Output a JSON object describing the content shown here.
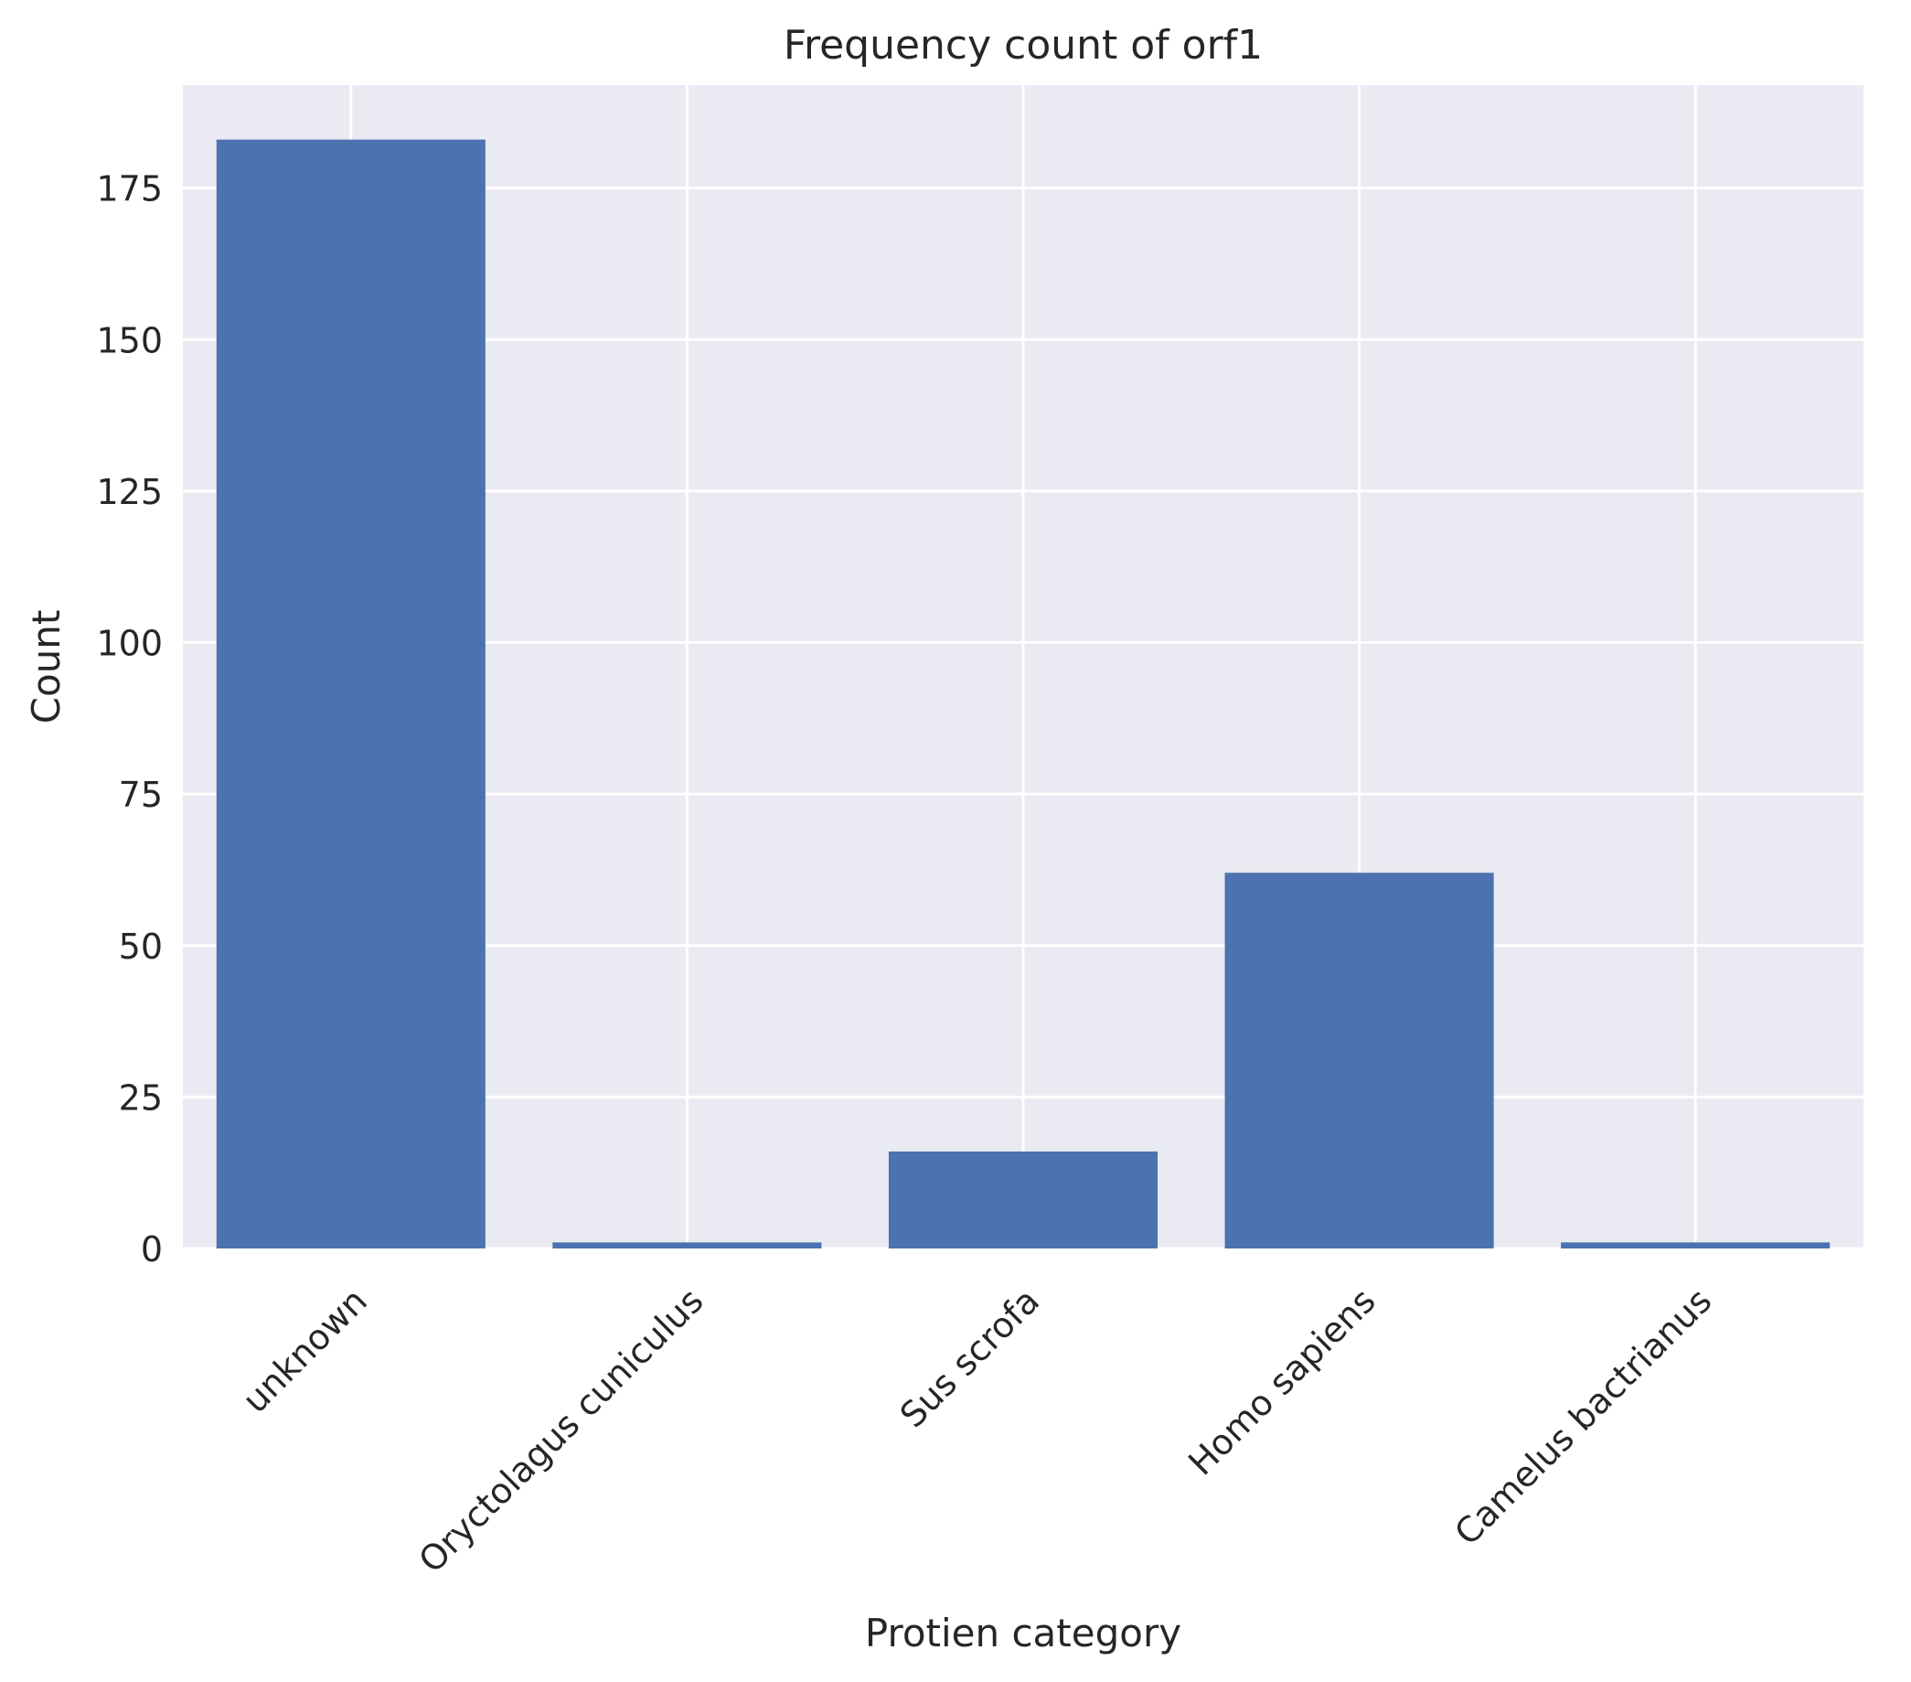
{
  "chart_data": {
    "type": "bar",
    "title": "Frequency count of orf1",
    "xlabel": "Protien category",
    "ylabel": "Count",
    "categories": [
      "unknown",
      "Oryctolagus cuniculus",
      "Sus scrofa",
      "Homo sapiens",
      "Camelus bactrianus"
    ],
    "values": [
      183,
      1,
      16,
      62,
      1
    ],
    "ylim": [
      0,
      192
    ],
    "yticks": [
      0,
      25,
      50,
      75,
      100,
      125,
      150,
      175
    ],
    "grid": true,
    "legend": "none",
    "colors": {
      "bar": "#4c72b0",
      "plot_background": "#eaeaf2",
      "grid": "#ffffff",
      "text": "#262626"
    }
  }
}
